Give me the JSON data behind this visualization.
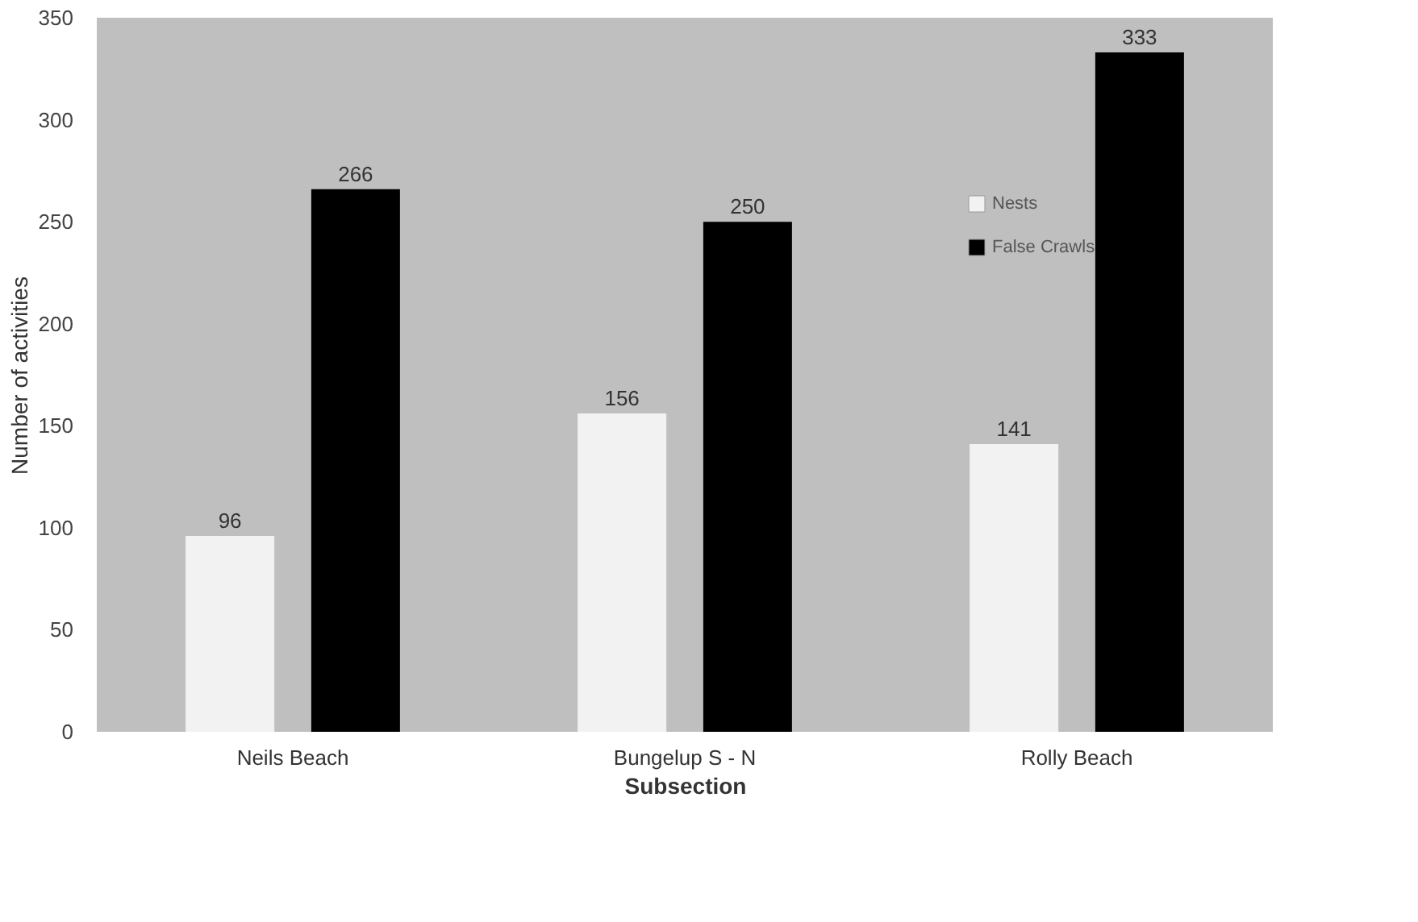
{
  "chart_data": {
    "type": "bar",
    "xlabel": "Subsection",
    "ylabel": "Number of activities",
    "categories": [
      "Neils Beach",
      "Bungelup S - N",
      "Rolly Beach"
    ],
    "series": [
      {
        "name": "Nests",
        "color": "#f2f2f2",
        "values": [
          96,
          156,
          141
        ]
      },
      {
        "name": "False Crawls",
        "color": "#000000",
        "values": [
          266,
          250,
          333
        ]
      }
    ],
    "ylim": [
      0,
      350
    ],
    "yticks": [
      0,
      50,
      100,
      150,
      200,
      250,
      300,
      350
    ],
    "grid": false,
    "legend": "top right",
    "data_labels": true
  }
}
